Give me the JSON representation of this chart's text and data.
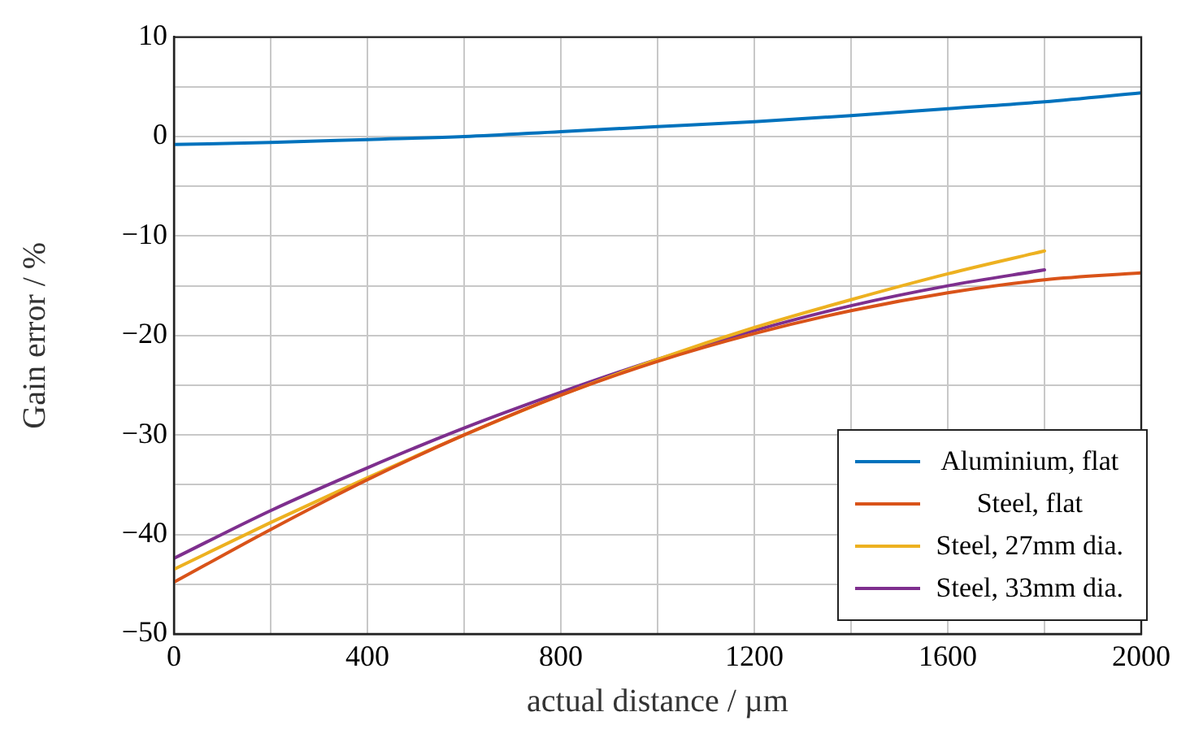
{
  "chart_data": {
    "type": "line",
    "xlabel": "actual distance / µm",
    "ylabel": "Gain error / %",
    "xlim": [
      0,
      2000
    ],
    "ylim": [
      -50,
      10
    ],
    "xticks": [
      0,
      {
        "value": 200,
        "label": null
      },
      400,
      {
        "value": 600,
        "label": null
      },
      800,
      {
        "value": 1000,
        "label": null
      },
      1200,
      {
        "value": 1400,
        "label": null
      },
      1600,
      {
        "value": 1800,
        "label": null
      },
      2000
    ],
    "yticks": [
      -50,
      {
        "value": -45,
        "label": null
      },
      -40,
      {
        "value": -35,
        "label": null
      },
      -30,
      {
        "value": -25,
        "label": null
      },
      -20,
      {
        "value": -15,
        "label": null
      },
      -10,
      {
        "value": -5,
        "label": null
      },
      0,
      {
        "value": 5,
        "label": null
      },
      10
    ],
    "grid": true,
    "legend": "bottom right",
    "marker": "none",
    "line_style": "solid",
    "x": [
      0,
      200,
      400,
      600,
      800,
      1000,
      1200,
      1400,
      1600,
      1800,
      2000
    ],
    "series": [
      {
        "name": "Aluminium, flat",
        "color": "#0072bd",
        "values": [
          -0.8,
          -0.6,
          -0.3,
          0.0,
          0.5,
          1.0,
          1.5,
          2.1,
          2.8,
          3.5,
          4.4
        ]
      },
      {
        "name": "Steel, flat",
        "color": "#d95319",
        "values": [
          -44.8,
          -39.5,
          -34.5,
          -30.0,
          -26.0,
          -22.6,
          -19.8,
          -17.5,
          -15.7,
          -14.4,
          -13.7
        ]
      },
      {
        "name": "Steel, 27mm dia.",
        "color": "#edb120",
        "values": [
          -43.5,
          -38.8,
          -34.3,
          -30.0,
          -26.0,
          -22.4,
          -19.2,
          -16.4,
          -13.8,
          -11.5,
          null
        ]
      },
      {
        "name": "Steel, 33mm dia.",
        "color": "#7e2f8e",
        "values": [
          -42.4,
          -37.6,
          -33.3,
          -29.3,
          -25.7,
          -22.4,
          -19.5,
          -17.0,
          -15.0,
          -13.4,
          null
        ]
      }
    ]
  }
}
